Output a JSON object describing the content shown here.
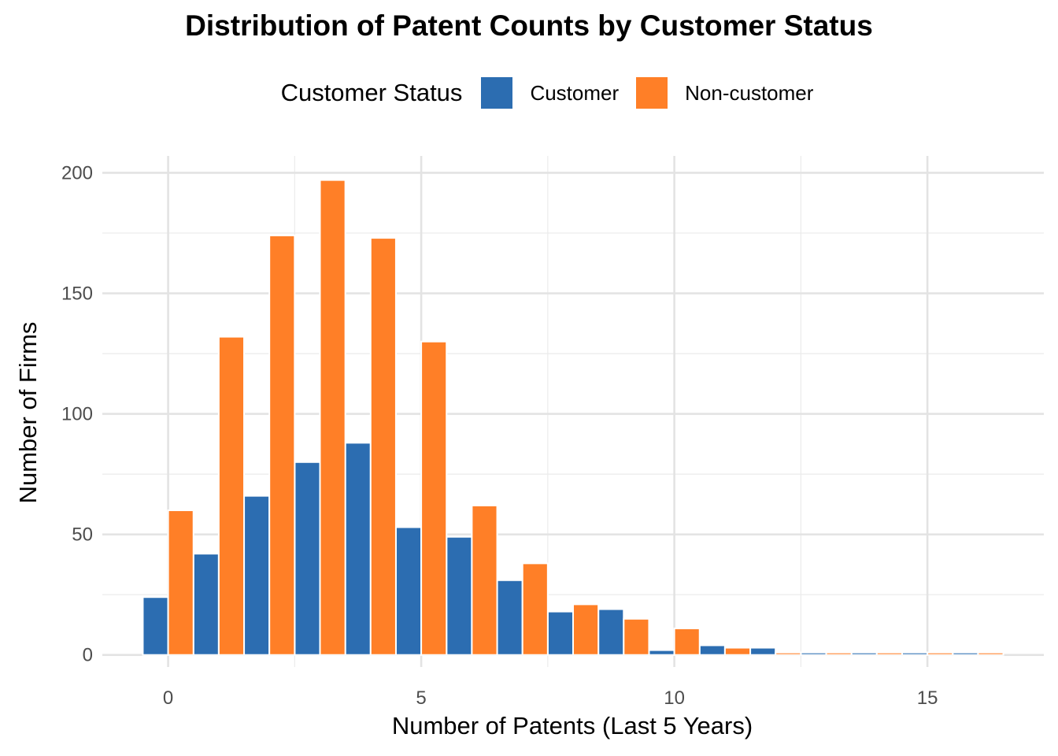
{
  "chart_data": {
    "type": "bar",
    "title": "Distribution of Patent Counts by Customer Status",
    "xlabel": "Number of Patents (Last 5 Years)",
    "ylabel": "Number of Firms",
    "xlim": [
      -1.3,
      17.3
    ],
    "ylim": [
      -5,
      207
    ],
    "x_ticks": [
      0,
      5,
      10,
      15
    ],
    "y_ticks": [
      0,
      50,
      100,
      150,
      200
    ],
    "grid": true,
    "legend": {
      "title": "Customer Status",
      "position": "top"
    },
    "bin_width": 1,
    "series": [
      {
        "name": "Customer",
        "color": "#2c6db1",
        "x": [
          0,
          1,
          2,
          3,
          4,
          5,
          6,
          7,
          8,
          9,
          10,
          11,
          12,
          13,
          14,
          15,
          16
        ],
        "values": [
          24,
          42,
          66,
          80,
          88,
          53,
          49,
          31,
          18,
          19,
          2,
          4,
          3,
          1,
          1,
          1,
          1
        ]
      },
      {
        "name": "Non-customer",
        "color": "#ff7f27",
        "x": [
          0,
          1,
          2,
          3,
          4,
          5,
          6,
          7,
          8,
          9,
          10,
          11,
          12,
          13,
          14,
          15,
          16
        ],
        "values": [
          60,
          132,
          174,
          197,
          173,
          130,
          62,
          38,
          21,
          15,
          11,
          3,
          1,
          1,
          1,
          1,
          1
        ]
      }
    ]
  }
}
